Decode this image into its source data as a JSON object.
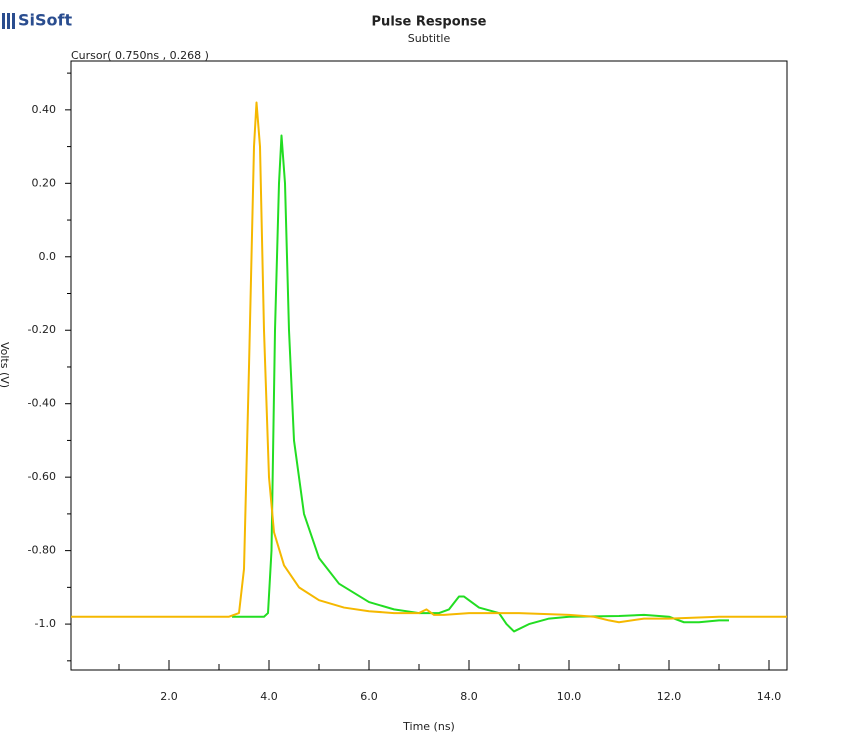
{
  "logo": "SiSoft",
  "chart_data": {
    "type": "line",
    "title": "Pulse Response",
    "subtitle": "Subtitle",
    "annotation": "Cursor( 0.750ns , 0.268 )",
    "xlabel": "Time (ns)",
    "ylabel": "Volts (V)",
    "xlim": [
      0.04,
      14.36
    ],
    "ylim": [
      -1.125,
      0.533
    ],
    "xticks": [
      {
        "value": 2,
        "label": "2.0"
      },
      {
        "value": 4,
        "label": "4.0"
      },
      {
        "value": 6,
        "label": "6.0"
      },
      {
        "value": 8,
        "label": "8.0"
      },
      {
        "value": 10,
        "label": "10.0"
      },
      {
        "value": 12,
        "label": "12.0"
      },
      {
        "value": 14,
        "label": "14.0"
      }
    ],
    "xminorticks": [
      1,
      3,
      5,
      7,
      9,
      11,
      13
    ],
    "yticks": [
      {
        "value": 0.4,
        "label": "0.40"
      },
      {
        "value": 0.2,
        "label": "0.20"
      },
      {
        "value": 0,
        "label": "0.0"
      },
      {
        "value": -0.2,
        "label": "-0.20"
      },
      {
        "value": -0.4,
        "label": "-0.40"
      },
      {
        "value": -0.6,
        "label": "-0.60"
      },
      {
        "value": -0.8,
        "label": "-0.80"
      },
      {
        "value": -1,
        "label": "-1.0"
      }
    ],
    "yminorticks": [
      0.5,
      0.3,
      0.1,
      -0.1,
      -0.3,
      -0.5,
      -0.7,
      -0.9,
      -1.1
    ],
    "series": [
      {
        "color": "#22dd22",
        "x": [
          3.26,
          3.9,
          3.98,
          4.05,
          4.12,
          4.2,
          4.25,
          4.32,
          4.4,
          4.5,
          4.7,
          5.0,
          5.4,
          6.0,
          6.5,
          7.0,
          7.4,
          7.6,
          7.8,
          7.9,
          8.2,
          8.6,
          8.75,
          8.9,
          9.2,
          9.6,
          10.0,
          11.0,
          11.5,
          12.0,
          12.3,
          12.6,
          13.0,
          13.2
        ],
        "values": [
          -0.98,
          -0.98,
          -0.97,
          -0.8,
          -0.2,
          0.2,
          0.33,
          0.2,
          -0.2,
          -0.5,
          -0.7,
          -0.82,
          -0.89,
          -0.94,
          -0.96,
          -0.97,
          -0.97,
          -0.96,
          -0.925,
          -0.925,
          -0.955,
          -0.97,
          -1.0,
          -1.02,
          -1.0,
          -0.985,
          -0.98,
          -0.978,
          -0.975,
          -0.98,
          -0.995,
          -0.995,
          -0.99,
          -0.99
        ]
      },
      {
        "color": "#f5b800",
        "x": [
          0.04,
          3.2,
          3.4,
          3.5,
          3.6,
          3.7,
          3.75,
          3.82,
          3.9,
          4.0,
          4.1,
          4.3,
          4.6,
          5.0,
          5.5,
          6.0,
          6.5,
          7.0,
          7.15,
          7.3,
          7.5,
          8.0,
          9.0,
          10.0,
          10.5,
          10.8,
          11.0,
          11.5,
          12.0,
          13.0,
          14.36
        ],
        "values": [
          -0.98,
          -0.98,
          -0.97,
          -0.85,
          -0.3,
          0.3,
          0.42,
          0.3,
          -0.2,
          -0.6,
          -0.75,
          -0.84,
          -0.9,
          -0.935,
          -0.955,
          -0.965,
          -0.97,
          -0.97,
          -0.96,
          -0.975,
          -0.975,
          -0.97,
          -0.97,
          -0.975,
          -0.98,
          -0.99,
          -0.995,
          -0.985,
          -0.985,
          -0.98,
          -0.98
        ]
      }
    ]
  }
}
